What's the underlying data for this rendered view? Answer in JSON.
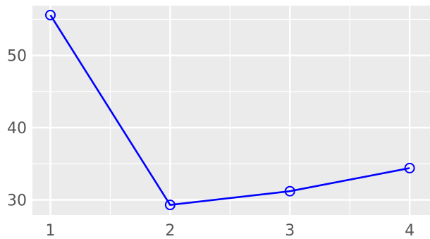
{
  "chart_data": {
    "type": "line",
    "title": "",
    "xlabel": "",
    "ylabel": "",
    "x": [
      1,
      2,
      3,
      4
    ],
    "xticks": [
      1,
      2,
      3,
      4
    ],
    "yticks": [
      30,
      40,
      50
    ],
    "xlim": [
      0.85,
      4.17
    ],
    "ylim": [
      27.9,
      56.9
    ],
    "grid": true,
    "grid_style": "major and minor",
    "legend": "none",
    "series": [
      {
        "values": [
          55.6,
          29.3,
          31.2,
          34.4
        ],
        "color": "#0000ff",
        "marker": "open-circle"
      }
    ],
    "background_color": "#ebebeb",
    "grid_color": "#ffffff"
  }
}
